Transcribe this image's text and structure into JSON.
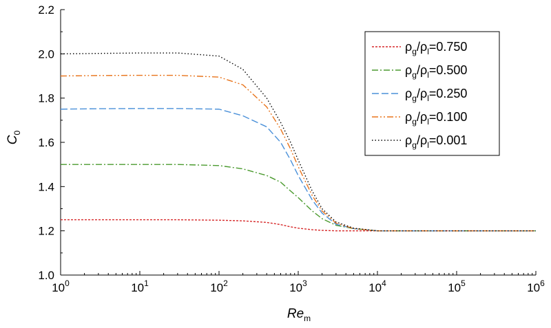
{
  "chart_data": {
    "type": "line",
    "title": "",
    "xlabel": {
      "main": "Re",
      "sub": "m"
    },
    "ylabel": {
      "main": "C",
      "sub": "0"
    },
    "x_scale": "log",
    "xlim": [
      1,
      1000000
    ],
    "ylim": [
      1.0,
      2.2
    ],
    "x_ticks": [
      {
        "base": "10",
        "exp": "0"
      },
      {
        "base": "10",
        "exp": "1"
      },
      {
        "base": "10",
        "exp": "2"
      },
      {
        "base": "10",
        "exp": "3"
      },
      {
        "base": "10",
        "exp": "4"
      },
      {
        "base": "10",
        "exp": "5"
      },
      {
        "base": "10",
        "exp": "6"
      }
    ],
    "x_tick_values": [
      1,
      10,
      100,
      1000,
      10000,
      100000,
      1000000
    ],
    "y_ticks": [
      "1.0",
      "1.2",
      "1.4",
      "1.6",
      "1.8",
      "2.0",
      "2.2"
    ],
    "y_tick_values": [
      1.0,
      1.2,
      1.4,
      1.6,
      1.8,
      2.0,
      2.2
    ],
    "grid": false,
    "legend_position": "top-right",
    "x": [
      1,
      3,
      10,
      30,
      100,
      200,
      400,
      600,
      800,
      1000,
      1500,
      2000,
      3000,
      5000,
      10000,
      100000,
      1000000
    ],
    "series": [
      {
        "name": {
          "a": "ρ",
          "as": "g",
          "b": "/ρ",
          "bs": "l",
          "val": "=0.750"
        },
        "color": "#d62728",
        "dash": "3,2",
        "values": [
          1.25,
          1.25,
          1.25,
          1.25,
          1.248,
          1.245,
          1.238,
          1.228,
          1.218,
          1.212,
          1.205,
          1.202,
          1.2,
          1.2,
          1.2,
          1.2,
          1.2
        ]
      },
      {
        "name": {
          "a": "ρ",
          "as": "g",
          "b": "/ρ",
          "bs": "l",
          "val": "=0.500"
        },
        "color": "#4a9a2e",
        "dash": "9,3,2,3",
        "values": [
          1.5,
          1.5,
          1.5,
          1.5,
          1.495,
          1.48,
          1.45,
          1.42,
          1.38,
          1.35,
          1.29,
          1.255,
          1.225,
          1.21,
          1.2,
          1.2,
          1.2
        ]
      },
      {
        "name": {
          "a": "ρ",
          "as": "g",
          "b": "/ρ",
          "bs": "l",
          "val": "=0.250"
        },
        "color": "#4a90d9",
        "dash": "10,4",
        "values": [
          1.75,
          1.752,
          1.753,
          1.753,
          1.75,
          1.72,
          1.67,
          1.6,
          1.52,
          1.45,
          1.34,
          1.28,
          1.23,
          1.21,
          1.2,
          1.2,
          1.2
        ]
      },
      {
        "name": {
          "a": "ρ",
          "as": "g",
          "b": "/ρ",
          "bs": "l",
          "val": "=0.100"
        },
        "color": "#e8731a",
        "dash": "9,3,2,3,2,3",
        "values": [
          1.9,
          1.902,
          1.903,
          1.903,
          1.895,
          1.86,
          1.76,
          1.66,
          1.57,
          1.49,
          1.36,
          1.29,
          1.235,
          1.21,
          1.2,
          1.2,
          1.2
        ]
      },
      {
        "name": {
          "a": "ρ",
          "as": "g",
          "b": "/ρ",
          "bs": "l",
          "val": "=0.001"
        },
        "color": "#000000",
        "dash": "1.5,3",
        "values": [
          2.0,
          2.002,
          2.004,
          2.004,
          1.99,
          1.93,
          1.8,
          1.69,
          1.6,
          1.52,
          1.38,
          1.3,
          1.24,
          1.212,
          1.2,
          1.2,
          1.2
        ]
      }
    ]
  }
}
